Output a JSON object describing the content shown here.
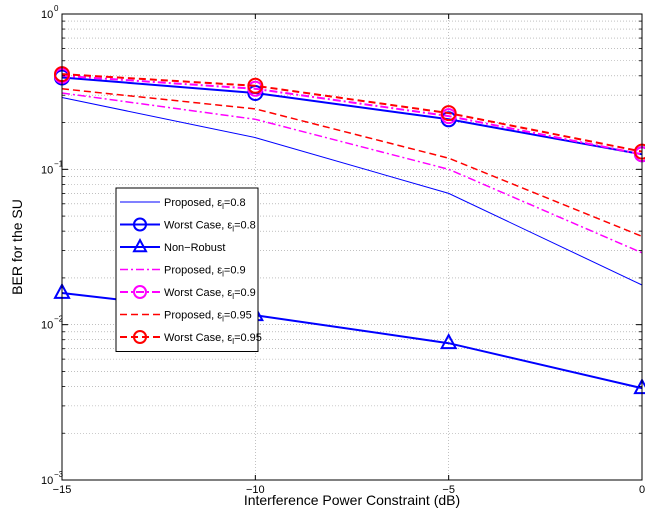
{
  "chart_data": {
    "type": "line",
    "xlabel": "Interference Power Constraint (dB)",
    "ylabel": "BER for the SU",
    "xlim": [
      -15,
      0
    ],
    "ylim": [
      0.001,
      1
    ],
    "yscale": "log",
    "grid": true,
    "x": [
      -15,
      -10,
      -5,
      0
    ],
    "x_tick_labels": [
      "−15",
      "−10",
      "−5",
      "0"
    ],
    "y_ticks": [
      {
        "value": 0.001,
        "base": "10",
        "exp": "−3"
      },
      {
        "value": 0.01,
        "base": "10",
        "exp": "−2"
      },
      {
        "value": 0.1,
        "base": "10",
        "exp": "−1"
      },
      {
        "value": 1,
        "base": "10",
        "exp": "0"
      }
    ],
    "legend_position": "center-left",
    "series": [
      {
        "name": "Proposed, εl=0.8",
        "legend_main": "Proposed, ε",
        "legend_sub": "l",
        "legend_tail": "=0.8",
        "color": "#0000ff",
        "dash": "",
        "marker": "none",
        "width": 1,
        "values": [
          0.29,
          0.16,
          0.07,
          0.018
        ]
      },
      {
        "name": "Worst Case, εl=0.8",
        "legend_main": "Worst Case, ε",
        "legend_sub": "l",
        "legend_tail": "=0.8",
        "color": "#0000ff",
        "dash": "",
        "marker": "circle",
        "width": 2,
        "values": [
          0.39,
          0.31,
          0.21,
          0.125
        ]
      },
      {
        "name": "Non−Robust",
        "legend_main": "Non−Robust",
        "legend_sub": "",
        "legend_tail": "",
        "color": "#0000ff",
        "dash": "",
        "marker": "triangle",
        "width": 2,
        "values": [
          0.016,
          0.0115,
          0.0076,
          0.0039
        ]
      },
      {
        "name": "Proposed, εl=0.9",
        "legend_main": "Proposed, ε",
        "legend_sub": "l",
        "legend_tail": "=0.9",
        "color": "#ff00ff",
        "dash": "8,3,2,3",
        "marker": "none",
        "width": 1.5,
        "values": [
          0.31,
          0.21,
          0.1,
          0.029
        ]
      },
      {
        "name": "Worst Case, εl=0.9",
        "legend_main": "Worst Case, ε",
        "legend_sub": "l",
        "legend_tail": "=0.9",
        "color": "#ff00ff",
        "dash": "8,3,2,3",
        "marker": "circle",
        "width": 2,
        "values": [
          0.4,
          0.33,
          0.22,
          0.125
        ]
      },
      {
        "name": "Proposed, εl=0.95",
        "legend_main": "Proposed, ε",
        "legend_sub": "l",
        "legend_tail": "=0.95",
        "color": "#ff0000",
        "dash": "7,4",
        "marker": "none",
        "width": 1.5,
        "values": [
          0.33,
          0.245,
          0.118,
          0.037
        ]
      },
      {
        "name": "Worst Case, εl=0.95",
        "legend_main": "Worst Case, ε",
        "legend_sub": "l",
        "legend_tail": "=0.95",
        "color": "#ff0000",
        "dash": "7,4",
        "marker": "circle",
        "width": 2,
        "values": [
          0.41,
          0.345,
          0.23,
          0.13
        ]
      }
    ]
  }
}
